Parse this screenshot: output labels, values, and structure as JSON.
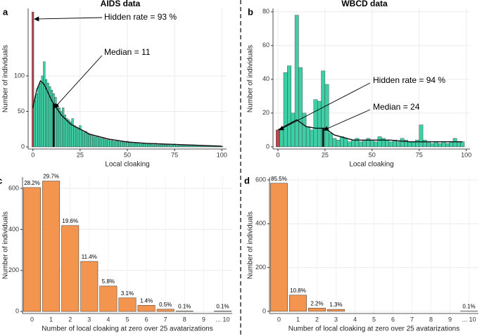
{
  "chart_data": [
    {
      "type": "histogram",
      "panel_label": "a",
      "title": "AIDS data",
      "xlabel": "Local cloaking",
      "ylabel": "Number of individuals",
      "bins": [
        -0.5,
        0.5,
        1.5,
        2.5,
        3.5,
        4.5,
        5.5,
        6.5,
        7.5,
        8.5,
        9.5,
        10.5,
        11.5,
        12.5,
        13.5,
        14.5,
        15.5,
        16.5,
        17.5,
        18.5,
        19.5,
        20.5,
        21.5,
        22.5,
        23.5,
        24.5,
        25.5,
        26.5,
        27.5,
        28.5,
        29.5,
        30.5,
        31.5,
        32.5,
        33.5,
        34.5,
        35.5,
        36.5,
        37.5,
        38.5,
        39.5,
        40.5,
        41.5,
        42.5,
        43.5,
        44.5,
        45.5,
        46.5,
        47.5,
        48.5,
        49.5,
        50.5,
        51.5,
        52.5,
        53.5,
        54.5,
        55.5,
        56.5,
        57.5,
        58.5,
        59.5,
        60.5,
        61.5,
        62.5,
        63.5,
        64.5,
        65.5,
        66.5,
        67.5,
        68.5,
        69.5,
        70.5,
        71.5,
        72.5,
        73.5,
        74.5,
        75.5,
        76.5,
        77.5,
        78.5,
        79.5,
        80.5,
        81.5,
        82.5,
        83.5,
        84.5,
        85.5,
        86.5,
        87.5,
        88.5,
        89.5,
        90.5,
        91.5,
        92.5,
        93.5,
        94.5,
        95.5,
        96.5,
        97.5,
        98.5,
        99.5,
        100.5
      ],
      "values": [
        190,
        65,
        75,
        85,
        90,
        100,
        120,
        95,
        90,
        85,
        80,
        75,
        70,
        60,
        55,
        50,
        55,
        45,
        40,
        38,
        35,
        40,
        30,
        28,
        25,
        30,
        22,
        20,
        22,
        18,
        17,
        16,
        15,
        14,
        15,
        13,
        12,
        12,
        11,
        10,
        10,
        9,
        9,
        8,
        8,
        9,
        7,
        8,
        7,
        6,
        8,
        6,
        6,
        5,
        5,
        6,
        5,
        4,
        5,
        4,
        5,
        4,
        4,
        4,
        3,
        5,
        3,
        3,
        4,
        3,
        3,
        3,
        3,
        2,
        3,
        4,
        2,
        2,
        3,
        2,
        2,
        2,
        2,
        2,
        2,
        3,
        2,
        2,
        1,
        2,
        1,
        1,
        1,
        1,
        1,
        1,
        1,
        1,
        1,
        1,
        1
      ],
      "color": "#3ecfa6",
      "highlight_index": 0,
      "highlight_color": "#b8474f",
      "curve": {
        "x": [
          0,
          2,
          4,
          6,
          10,
          15,
          20,
          30,
          40,
          50,
          60,
          70,
          80,
          90,
          100
        ],
        "values": [
          55,
          80,
          93,
          88,
          65,
          45,
          32,
          18,
          11,
          7,
          5,
          4,
          3,
          2,
          1
        ]
      },
      "median": 11,
      "annotations": [
        "Hidden rate = 93 %",
        "Median = 11"
      ],
      "xlim": [
        -2.5,
        102.5
      ],
      "xticks": [
        0,
        25,
        50,
        75,
        100
      ],
      "ylim": [
        -3,
        195
      ],
      "yticks": [
        0,
        50,
        100
      ],
      "grid": true
    },
    {
      "type": "histogram",
      "panel_label": "b",
      "title": "WBCD data",
      "xlabel": "Local cloaking",
      "ylabel": "Number of individuals",
      "bins": [
        -1,
        1,
        3,
        5,
        7,
        9,
        11,
        13,
        15,
        17,
        19,
        21,
        23,
        25,
        27,
        29,
        31,
        33,
        35,
        37,
        39,
        41,
        43,
        45,
        47,
        49,
        51,
        53,
        55,
        57,
        59,
        61,
        63,
        65,
        67,
        69,
        71,
        73,
        75,
        77,
        79,
        81,
        83,
        85,
        87,
        89,
        91,
        93,
        95,
        97,
        99
      ],
      "values": [
        10,
        10,
        44,
        48,
        20,
        78,
        47,
        20,
        12,
        10,
        28,
        27,
        45,
        37,
        8,
        5,
        4,
        6,
        5,
        3,
        4,
        5,
        3,
        4,
        5,
        4,
        3,
        6,
        5,
        4,
        3,
        4,
        3,
        5,
        4,
        3,
        3,
        4,
        13,
        4,
        3,
        2,
        3,
        2,
        3,
        2,
        3,
        5,
        3,
        3
      ],
      "color": "#3ecfa6",
      "highlight_index": 0,
      "highlight_color": "#b8474f",
      "curve": {
        "x": [
          0,
          5,
          10,
          15,
          20,
          25,
          30,
          40,
          50,
          60,
          70,
          80,
          90,
          98
        ],
        "values": [
          10,
          13,
          16,
          12,
          11,
          11,
          7,
          4,
          4,
          4,
          3,
          3,
          3,
          3
        ]
      },
      "median": 24,
      "annotations": [
        "Hidden rate = 94 %",
        "Median = 24"
      ],
      "xlim": [
        -2.6,
        102
      ],
      "xticks": [
        0,
        25,
        50,
        75,
        100
      ],
      "ylim": [
        -1.3,
        82
      ],
      "yticks": [
        0,
        20,
        40,
        60,
        80
      ],
      "grid": true
    },
    {
      "type": "bar",
      "panel_label": "c",
      "xlabel": "Number of local cloaking at zero over 25 avatarizations",
      "ylabel": "Number of individuals",
      "categories": [
        "0",
        "1",
        "2",
        "3",
        "4",
        "5",
        "6",
        "7",
        "8",
        "9",
        "... 10"
      ],
      "values": [
        604,
        636,
        419,
        244,
        124,
        66,
        30,
        11,
        2,
        0,
        2
      ],
      "percent_labels": [
        "28.2%",
        "29.7%",
        "19.6%",
        "11.4%",
        "5.8%",
        "3.1%",
        "1.4%",
        "0.5%",
        "0.1%",
        null,
        "0.1%"
      ],
      "color": "#f4954f",
      "ylim": [
        -10,
        655
      ],
      "yticks": [
        0,
        200,
        400,
        600
      ],
      "grid": true
    },
    {
      "type": "bar",
      "panel_label": "d",
      "xlabel": "Number of local cloaking at zero over 25 avatarizations",
      "ylabel": "Number of individuals",
      "categories": [
        "0",
        "1",
        "2",
        "3",
        "4",
        "5",
        "6",
        "7",
        "8",
        "9",
        "... 10"
      ],
      "values": [
        585,
        74,
        15,
        9,
        0,
        0,
        0,
        0,
        0,
        0,
        1
      ],
      "percent_labels": [
        "85.5%",
        "10.8%",
        "2.2%",
        "1.3%",
        null,
        null,
        null,
        null,
        null,
        null,
        "0.1%"
      ],
      "color": "#f4954f",
      "ylim": [
        -10,
        613
      ],
      "yticks": [
        0,
        200,
        400,
        600
      ],
      "grid": true
    }
  ]
}
